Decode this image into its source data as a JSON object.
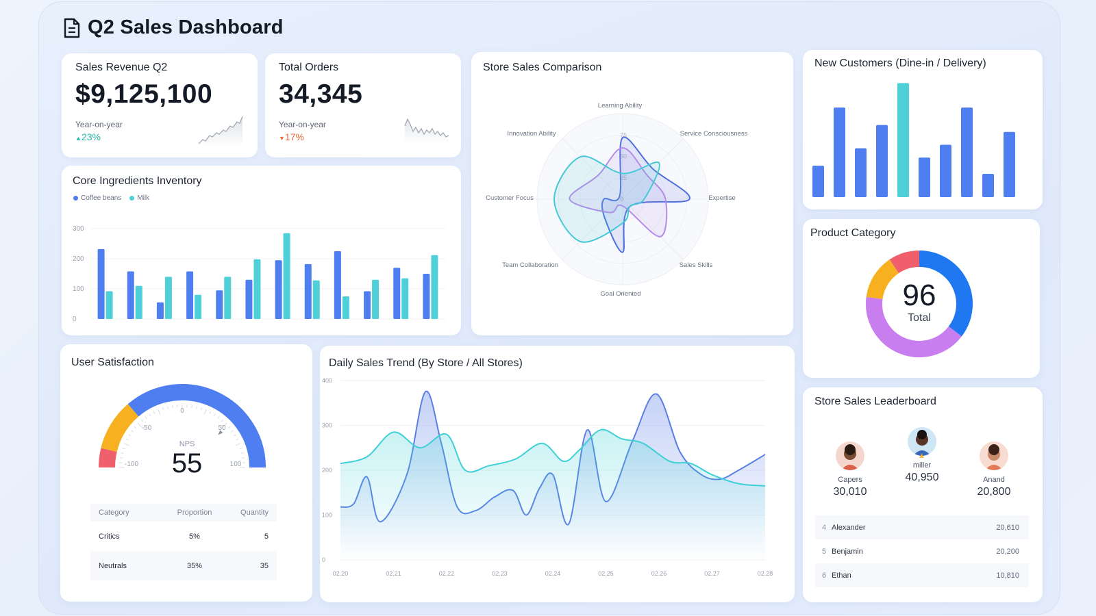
{
  "header": {
    "title": "Q2 Sales Dashboard",
    "icon": "document-icon"
  },
  "kpis": {
    "revenue": {
      "title": "Sales Revenue Q2",
      "value": "$9,125,100",
      "sub": "Year-on-year",
      "change": "23%",
      "direction": "up"
    },
    "orders": {
      "title": "Total Orders",
      "value": "34,345",
      "sub": "Year-on-year",
      "change": "17%",
      "direction": "down"
    }
  },
  "inventory": {
    "title": "Core Ingredients Inventory",
    "legend": [
      "Coffee beans",
      "Milk"
    ],
    "colors": [
      "#4e7ef0",
      "#4fd0d8"
    ]
  },
  "radar": {
    "title": "Store Sales Comparison",
    "axes": [
      "Learning Ability",
      "Service Consciousness",
      "Expertise",
      "Sales Skills",
      "Goal Oriented",
      "Team Collaboration",
      "Customer Focus",
      "Innovation Ability"
    ],
    "ticks": [
      "75",
      "50",
      "25",
      "0"
    ]
  },
  "new_customers": {
    "title": "New Customers (Dine-in / Delivery)"
  },
  "category": {
    "title": "Product Category",
    "total": "96",
    "total_label": "Total"
  },
  "satisfaction": {
    "title": "User Satisfaction",
    "nps_label": "NPS",
    "nps_value": "55",
    "scale_labels": [
      "-100",
      "-50",
      "0",
      "50",
      "100"
    ],
    "table": {
      "headers": [
        "Category",
        "Proportion",
        "Quantity"
      ],
      "rows": [
        {
          "category": "Critics",
          "proportion": "5%",
          "quantity": "5"
        },
        {
          "category": "Neutrals",
          "proportion": "35%",
          "quantity": "35"
        }
      ]
    }
  },
  "trend": {
    "title": "Daily Sales Trend (By Store / All Stores)"
  },
  "leaderboard": {
    "title": "Store Sales Leaderboard",
    "podium": [
      {
        "rank": 1,
        "name": "miller",
        "value": "40,950"
      },
      {
        "rank": 2,
        "name": "Capers",
        "value": "30,010"
      },
      {
        "rank": 3,
        "name": "Anand",
        "value": "20,800"
      }
    ],
    "rows": [
      {
        "rank": "4",
        "name": "Alexander",
        "value": "20,610"
      },
      {
        "rank": "5",
        "name": "Benjamin",
        "value": "20,200"
      },
      {
        "rank": "6",
        "name": "Ethan",
        "value": "10,810"
      }
    ]
  },
  "chart_data": [
    {
      "type": "bar",
      "title": "Core Ingredients Inventory",
      "categories": [
        "",
        "",
        "",
        "",
        "",
        "",
        "",
        "",
        "",
        "",
        "",
        ""
      ],
      "series": [
        {
          "name": "Coffee beans",
          "values": [
            232,
            158,
            55,
            158,
            95,
            130,
            195,
            182,
            225,
            92,
            170,
            150
          ]
        },
        {
          "name": "Milk",
          "values": [
            92,
            110,
            140,
            80,
            140,
            198,
            285,
            128,
            75,
            130,
            135,
            212
          ]
        }
      ],
      "yticks": [
        0,
        100,
        200,
        300
      ],
      "ylim": [
        0,
        300
      ]
    },
    {
      "type": "radar",
      "title": "Store Sales Comparison",
      "axes": [
        "Learning Ability",
        "Service Consciousness",
        "Expertise",
        "Sales Skills",
        "Goal Oriented",
        "Team Collaboration",
        "Customer Focus",
        "Innovation Ability"
      ],
      "series": [
        {
          "values": [
            72,
            50,
            78,
            12,
            62,
            30,
            22,
            5
          ],
          "color": "#4e6fe0"
        },
        {
          "values": [
            60,
            40,
            50,
            62,
            8,
            22,
            62,
            40
          ],
          "color": "#b58be8"
        },
        {
          "values": [
            30,
            60,
            25,
            12,
            28,
            70,
            80,
            70
          ],
          "color": "#45c9d6"
        }
      ],
      "rlim": [
        0,
        100
      ]
    },
    {
      "type": "bar",
      "title": "New Customers (Dine-in / Delivery)",
      "values": [
        27,
        77,
        42,
        62,
        98,
        34,
        45,
        77,
        20,
        56
      ],
      "highlight_index": 4,
      "colors": [
        "#4e7ef0",
        "#4fd0d8"
      ]
    },
    {
      "type": "pie",
      "title": "Product Category",
      "total": 96,
      "slices": [
        {
          "value": 34,
          "color": "#1f78f2"
        },
        {
          "value": 40,
          "color": "#c97ef0"
        },
        {
          "value": 13,
          "color": "#f7b120"
        },
        {
          "value": 9,
          "color": "#f0606c"
        }
      ]
    },
    {
      "type": "gauge",
      "title": "User Satisfaction",
      "value": 55,
      "range": [
        -100,
        100
      ]
    },
    {
      "type": "area",
      "title": "Daily Sales Trend (By Store / All Stores)",
      "x": [
        "02.20",
        "02.21",
        "02.22",
        "02.23",
        "02.24",
        "02.25",
        "02.26",
        "02.27",
        "02.28"
      ],
      "yticks": [
        0,
        100,
        200,
        300,
        400
      ],
      "ylim": [
        0,
        400
      ],
      "series": [
        {
          "color": "#5b7ee6",
          "points": [
            [
              0,
              118
            ],
            [
              0.25,
              125
            ],
            [
              0.5,
              185
            ],
            [
              0.75,
              85
            ],
            [
              1.25,
              190
            ],
            [
              1.6,
              375
            ],
            [
              1.9,
              260
            ],
            [
              2.2,
              118
            ],
            [
              2.55,
              110
            ],
            [
              2.9,
              140
            ],
            [
              3.25,
              155
            ],
            [
              3.5,
              100
            ],
            [
              3.75,
              160
            ],
            [
              4,
              190
            ],
            [
              4.3,
              80
            ],
            [
              4.65,
              290
            ],
            [
              5,
              130
            ],
            [
              5.5,
              265
            ],
            [
              5.95,
              370
            ],
            [
              6.4,
              240
            ],
            [
              6.8,
              190
            ],
            [
              7.15,
              180
            ],
            [
              7.5,
              200
            ],
            [
              8,
              235
            ]
          ]
        },
        {
          "color": "#3ed0d6",
          "points": [
            [
              0,
              215
            ],
            [
              0.5,
              230
            ],
            [
              1,
              285
            ],
            [
              1.5,
              250
            ],
            [
              2,
              280
            ],
            [
              2.35,
              200
            ],
            [
              2.8,
              210
            ],
            [
              3.3,
              225
            ],
            [
              3.8,
              260
            ],
            [
              4.2,
              220
            ],
            [
              4.5,
              245
            ],
            [
              4.9,
              290
            ],
            [
              5.3,
              270
            ],
            [
              5.7,
              260
            ],
            [
              6.2,
              220
            ],
            [
              6.6,
              215
            ],
            [
              7,
              190
            ],
            [
              7.5,
              170
            ],
            [
              8,
              165
            ]
          ]
        }
      ]
    }
  ]
}
